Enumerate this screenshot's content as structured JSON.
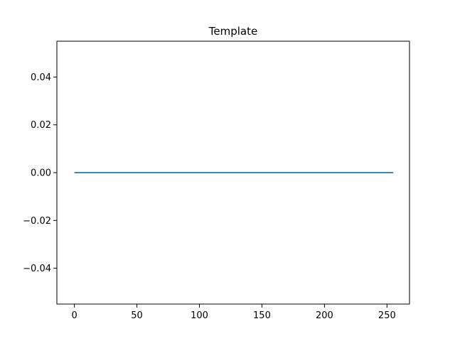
{
  "chart_data": {
    "type": "line",
    "title": "Template",
    "xlabel": "",
    "ylabel": "",
    "xlim": [
      -14,
      268
    ],
    "ylim": [
      -0.055,
      0.055
    ],
    "x_ticks": [
      0,
      50,
      100,
      150,
      200,
      250
    ],
    "x_tick_labels": [
      "0",
      "50",
      "100",
      "150",
      "200",
      "250"
    ],
    "y_ticks": [
      0.04,
      0.02,
      0.0,
      -0.02,
      -0.04
    ],
    "y_tick_labels": [
      "0.04",
      "0.02",
      "0.00",
      "−0.02",
      "−0.04"
    ],
    "grid": false,
    "legend": "none",
    "series": [
      {
        "color": "#1f77b4",
        "x": [
          0,
          255
        ],
        "y": [
          0,
          0
        ]
      }
    ]
  }
}
